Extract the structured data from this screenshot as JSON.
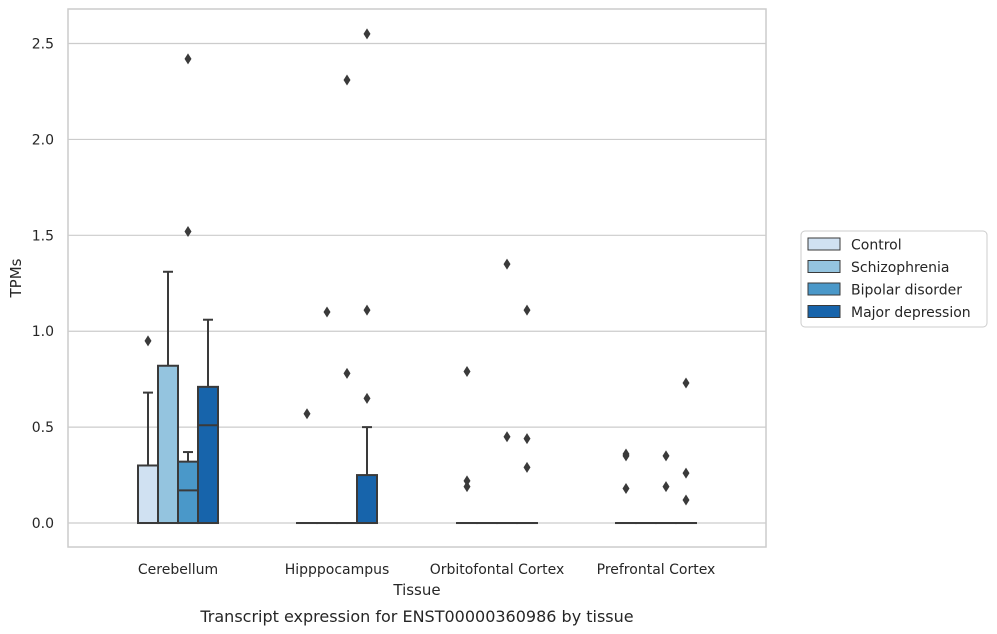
{
  "chart_data": {
    "type": "box",
    "title": "Transcript expression for ENST00000360986 by tissue",
    "xlabel": "Tissue",
    "ylabel": "TPMs",
    "ylim": [
      -0.125,
      2.68
    ],
    "yticks": [
      0.0,
      0.5,
      1.0,
      1.5,
      2.0,
      2.5
    ],
    "ytick_labels": [
      "0.0",
      "0.5",
      "1.0",
      "1.5",
      "2.0",
      "2.5"
    ],
    "grid": "horizontal",
    "legend_position": "right",
    "categories": [
      "Cerebellum",
      "Hipppocampus",
      "Orbitofontal Cortex",
      "Prefrontal Cortex"
    ],
    "series": [
      {
        "name": "Control",
        "color": "#d0e1f2",
        "boxes": [
          {
            "q1": 0.0,
            "median": 0.0,
            "q3": 0.3,
            "whisker_low": 0.0,
            "whisker_high": 0.68,
            "outliers": [
              0.95
            ]
          },
          {
            "q1": 0.0,
            "median": 0.0,
            "q3": 0.0,
            "whisker_low": 0.0,
            "whisker_high": 0.0,
            "outliers": [
              0.57
            ]
          },
          {
            "q1": 0.0,
            "median": 0.0,
            "q3": 0.0,
            "whisker_low": 0.0,
            "whisker_high": 0.0,
            "outliers": [
              0.79,
              0.22,
              0.19
            ]
          },
          {
            "q1": 0.0,
            "median": 0.0,
            "q3": 0.0,
            "whisker_low": 0.0,
            "whisker_high": 0.0,
            "outliers": [
              0.36,
              0.35,
              0.18
            ]
          }
        ]
      },
      {
        "name": "Schizophrenia",
        "color": "#94c4df",
        "boxes": [
          {
            "q1": 0.0,
            "median": 0.0,
            "q3": 0.82,
            "whisker_low": 0.0,
            "whisker_high": 1.31,
            "outliers": []
          },
          {
            "q1": 0.0,
            "median": 0.0,
            "q3": 0.0,
            "whisker_low": 0.0,
            "whisker_high": 0.0,
            "outliers": [
              1.1
            ]
          },
          {
            "q1": 0.0,
            "median": 0.0,
            "q3": 0.0,
            "whisker_low": 0.0,
            "whisker_high": 0.0,
            "outliers": []
          },
          {
            "q1": 0.0,
            "median": 0.0,
            "q3": 0.0,
            "whisker_low": 0.0,
            "whisker_high": 0.0,
            "outliers": []
          }
        ]
      },
      {
        "name": "Bipolar disorder",
        "color": "#4a98c9",
        "boxes": [
          {
            "q1": 0.0,
            "median": 0.17,
            "q3": 0.32,
            "whisker_low": 0.0,
            "whisker_high": 0.37,
            "outliers": [
              2.42,
              1.52
            ]
          },
          {
            "q1": 0.0,
            "median": 0.0,
            "q3": 0.0,
            "whisker_low": 0.0,
            "whisker_high": 0.0,
            "outliers": [
              2.31,
              0.78
            ]
          },
          {
            "q1": 0.0,
            "median": 0.0,
            "q3": 0.0,
            "whisker_low": 0.0,
            "whisker_high": 0.0,
            "outliers": [
              1.35,
              0.45
            ]
          },
          {
            "q1": 0.0,
            "median": 0.0,
            "q3": 0.0,
            "whisker_low": 0.0,
            "whisker_high": 0.0,
            "outliers": [
              0.35,
              0.19
            ]
          }
        ]
      },
      {
        "name": "Major depression",
        "color": "#1764ab",
        "boxes": [
          {
            "q1": 0.0,
            "median": 0.51,
            "q3": 0.71,
            "whisker_low": 0.0,
            "whisker_high": 1.06,
            "outliers": []
          },
          {
            "q1": 0.0,
            "median": 0.0,
            "q3": 0.25,
            "whisker_low": 0.0,
            "whisker_high": 0.5,
            "outliers": [
              2.55,
              1.11,
              0.65
            ]
          },
          {
            "q1": 0.0,
            "median": 0.0,
            "q3": 0.0,
            "whisker_low": 0.0,
            "whisker_high": 0.0,
            "outliers": [
              1.11,
              0.44,
              0.29
            ]
          },
          {
            "q1": 0.0,
            "median": 0.0,
            "q3": 0.0,
            "whisker_low": 0.0,
            "whisker_high": 0.0,
            "outliers": [
              0.73,
              0.26,
              0.12
            ]
          }
        ]
      }
    ],
    "colors": {
      "frame": "#cccccc",
      "grid": "#cccccc",
      "line": "#3a3a3a",
      "text": "#262626"
    }
  }
}
